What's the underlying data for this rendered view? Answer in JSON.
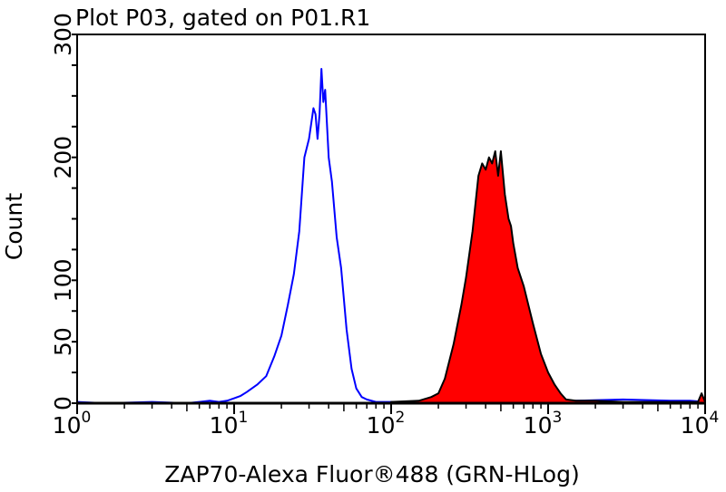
{
  "chart_data": {
    "type": "area",
    "title": "Plot P03, gated on P01.R1",
    "xlabel": "ZAP70-Alexa Fluor®488 (GRN-HLog)",
    "ylabel": "Count",
    "xscale": "log",
    "xlim": [
      1,
      10000
    ],
    "ylim": [
      0,
      300
    ],
    "x_ticks": [
      {
        "base": "10",
        "exp": "0",
        "value": 1
      },
      {
        "base": "10",
        "exp": "1",
        "value": 10
      },
      {
        "base": "10",
        "exp": "2",
        "value": 100
      },
      {
        "base": "10",
        "exp": "3",
        "value": 1000
      },
      {
        "base": "10",
        "exp": "4",
        "value": 10000
      }
    ],
    "y_tick_labels": [
      "0",
      "50",
      "100",
      "200",
      "300"
    ],
    "y_tick_values": [
      0,
      50,
      100,
      200,
      300
    ],
    "grid": false,
    "series": [
      {
        "style": "line",
        "color": "#0000ff",
        "x": [
          1,
          1.5,
          3,
          5,
          6,
          7,
          8,
          9,
          10,
          11,
          12,
          14,
          16,
          18,
          20,
          22,
          24,
          26,
          28,
          30,
          32,
          33,
          34,
          35,
          36,
          37,
          38,
          40,
          42,
          45,
          48,
          52,
          56,
          60,
          65,
          70,
          80,
          100,
          150,
          200,
          1500,
          3000,
          6000,
          8000,
          10000
        ],
        "y": [
          1,
          0,
          1,
          0,
          1,
          2,
          1,
          2,
          4,
          6,
          9,
          15,
          22,
          38,
          55,
          80,
          105,
          140,
          200,
          215,
          240,
          235,
          215,
          235,
          272,
          245,
          255,
          200,
          180,
          135,
          110,
          60,
          28,
          12,
          5,
          3,
          1,
          1,
          1,
          2,
          2,
          3,
          2,
          2,
          1
        ]
      },
      {
        "style": "filled",
        "color": "#ff0000",
        "outline": "#000000",
        "x": [
          100,
          150,
          180,
          200,
          220,
          250,
          280,
          300,
          330,
          360,
          380,
          400,
          420,
          440,
          460,
          480,
          500,
          530,
          560,
          580,
          600,
          640,
          700,
          800,
          900,
          1000,
          1100,
          1200,
          1300,
          1500,
          2000,
          3000,
          5000,
          9000,
          9500,
          10000
        ],
        "y": [
          1,
          2,
          5,
          8,
          20,
          48,
          80,
          102,
          140,
          185,
          195,
          190,
          200,
          195,
          205,
          185,
          205,
          170,
          150,
          144,
          130,
          110,
          95,
          65,
          40,
          25,
          15,
          8,
          3,
          2,
          2,
          1,
          1,
          1,
          8,
          1
        ]
      }
    ]
  }
}
